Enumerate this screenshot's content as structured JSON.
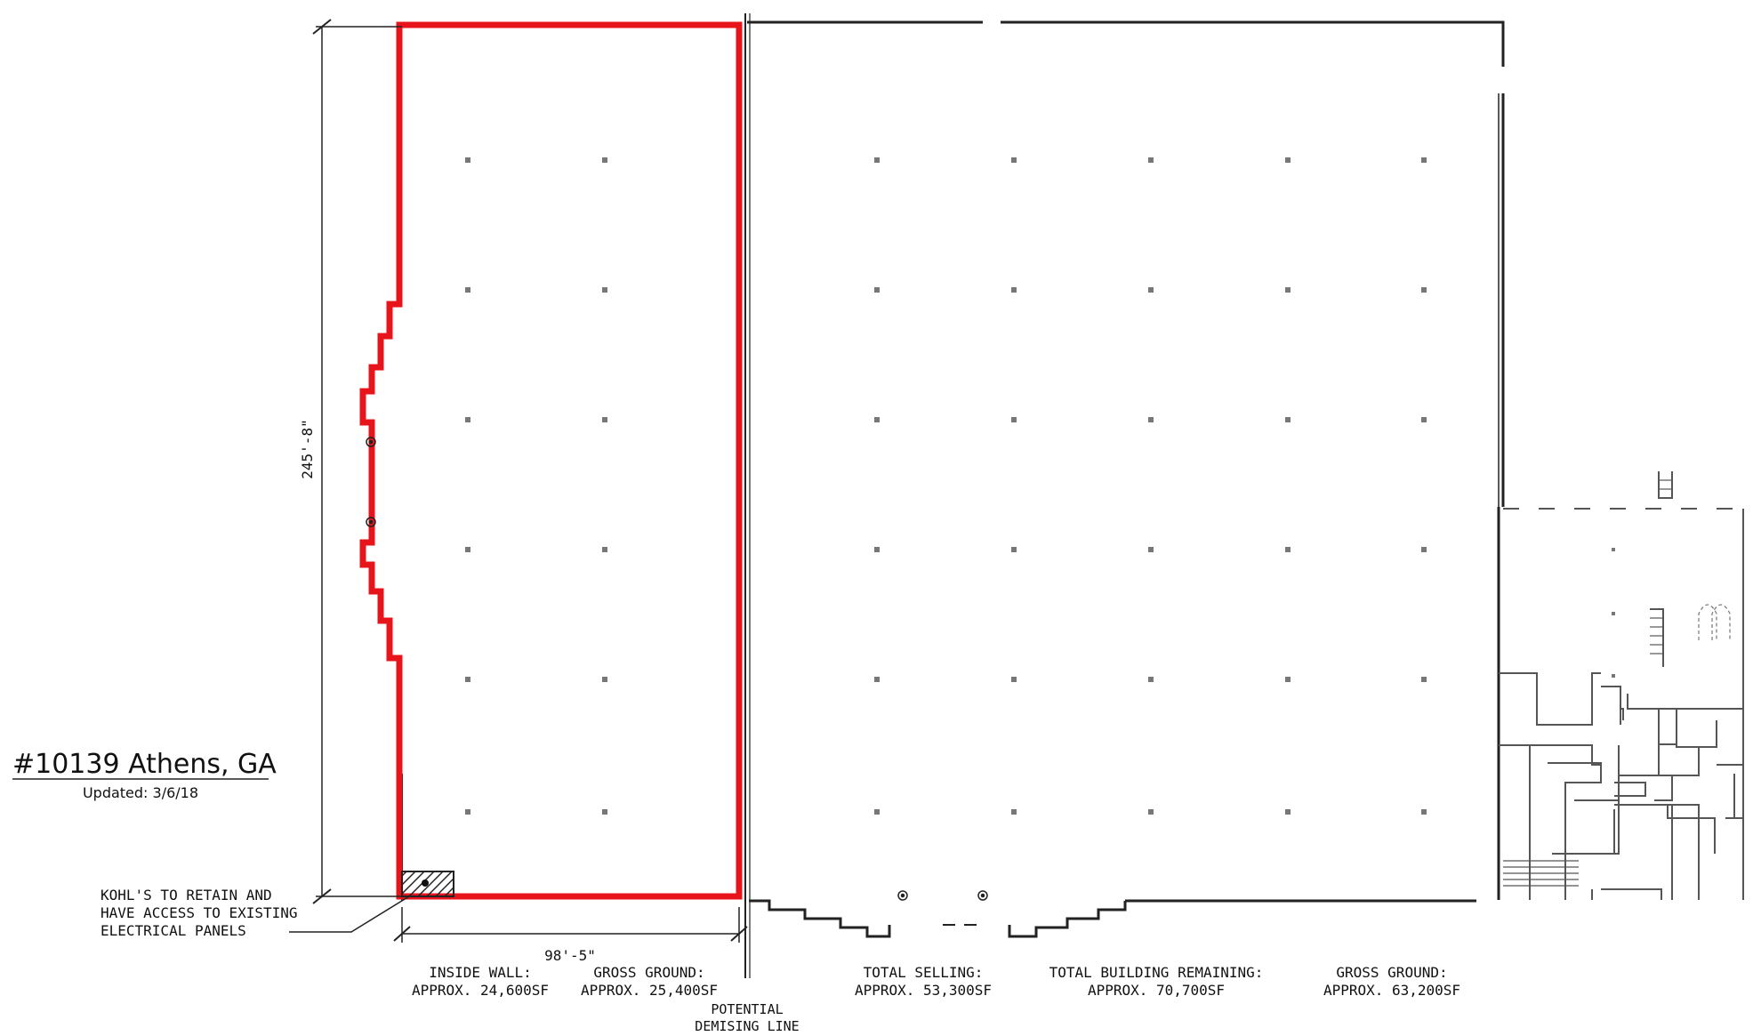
{
  "title": "#10139 Athens, GA",
  "updated": "Updated: 3/6/18",
  "dimensions": {
    "height": "245'-8\"",
    "width": "98'-5\""
  },
  "note": [
    "KOHL'S TO RETAIN AND",
    "HAVE ACCESS TO EXISTING",
    "ELECTRICAL PANELS"
  ],
  "demising": [
    "POTENTIAL",
    "DEMISING LINE"
  ],
  "areas": [
    {
      "label": "INSIDE WALL:",
      "value": "APPROX. 24,600SF"
    },
    {
      "label": "GROSS GROUND:",
      "value": "APPROX. 25,400SF"
    },
    {
      "label": "TOTAL SELLING:",
      "value": "APPROX. 53,300SF"
    },
    {
      "label": "TOTAL BUILDING REMAINING:",
      "value": "APPROX. 70,700SF"
    },
    {
      "label": "GROSS GROUND:",
      "value": "APPROX. 63,200SF"
    }
  ],
  "colors": {
    "highlight": "#e8141b",
    "wall": "#222222",
    "column": "#777777"
  }
}
